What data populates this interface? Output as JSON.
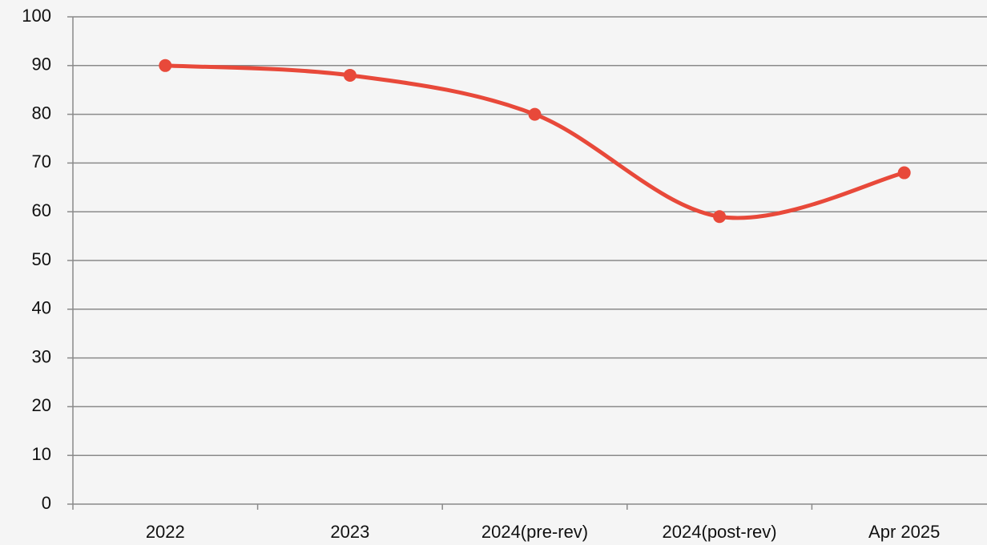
{
  "chart_data": {
    "type": "line",
    "categories": [
      "2022",
      "2023",
      "2024(pre-rev)",
      "2024(post-rev)",
      "Apr 2025"
    ],
    "values": [
      90,
      88,
      80,
      59,
      68
    ],
    "color": "#e8493a",
    "smooth": true,
    "ylim": [
      0,
      100
    ],
    "yticks": [
      0,
      10,
      20,
      30,
      40,
      50,
      60,
      70,
      80,
      90,
      100
    ],
    "grid": true
  }
}
